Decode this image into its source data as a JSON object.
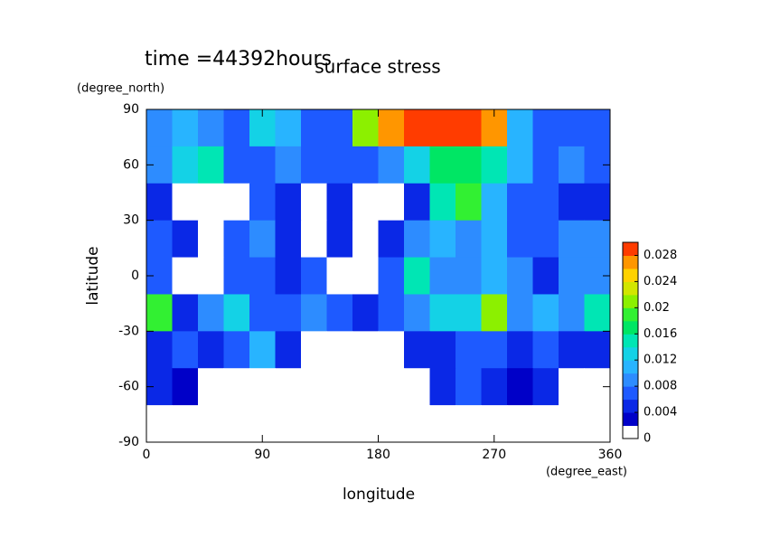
{
  "chart_data": {
    "type": "contour",
    "title": "surface stress",
    "subtitle": "time =44392hours",
    "x_label": "longitude",
    "x_unit": "(degree_east)",
    "y_label": "latitude",
    "y_unit": "(degree_north)",
    "x": [
      10,
      30,
      50,
      70,
      90,
      110,
      130,
      150,
      170,
      190,
      210,
      230,
      250,
      270,
      290,
      310,
      330,
      350
    ],
    "y": [
      80,
      60,
      40,
      20,
      0,
      -20,
      -40,
      -60,
      -80
    ],
    "z": [
      [
        0.008,
        0.01,
        0.008,
        0.006,
        0.012,
        0.01,
        0.006,
        0.006,
        0.02,
        0.026,
        0.028,
        0.028,
        0.028,
        0.026,
        0.01,
        0.006,
        0.006,
        0.006
      ],
      [
        0.008,
        0.012,
        0.014,
        0.006,
        0.006,
        0.008,
        0.006,
        0.006,
        0.006,
        0.008,
        0.012,
        0.016,
        0.016,
        0.014,
        0.01,
        0.006,
        0.008,
        0.006
      ],
      [
        0.004,
        0,
        0,
        0,
        0.006,
        0.004,
        0,
        0.004,
        0,
        0,
        0.004,
        0.014,
        0.018,
        0.01,
        0.006,
        0.006,
        0.004,
        0.004
      ],
      [
        0.006,
        0.004,
        0,
        0.006,
        0.008,
        0.004,
        0,
        0.004,
        0,
        0.004,
        0.008,
        0.01,
        0.008,
        0.01,
        0.006,
        0.006,
        0.008,
        0.008
      ],
      [
        0.006,
        0,
        0,
        0.006,
        0.006,
        0.004,
        0.006,
        0,
        0,
        0.006,
        0.014,
        0.008,
        0.008,
        0.01,
        0.008,
        0.004,
        0.008,
        0.008
      ],
      [
        0.018,
        0.004,
        0.008,
        0.012,
        0.006,
        0.006,
        0.008,
        0.006,
        0.004,
        0.006,
        0.008,
        0.012,
        0.012,
        0.02,
        0.008,
        0.01,
        0.008,
        0.014
      ],
      [
        0.004,
        0.006,
        0.004,
        0.006,
        0.01,
        0.004,
        0,
        0,
        0,
        0,
        0.004,
        0.004,
        0.006,
        0.006,
        0.004,
        0.006,
        0.004,
        0.004
      ],
      [
        0.004,
        0.002,
        0,
        0,
        0,
        0,
        0,
        0,
        0,
        0,
        0,
        0.004,
        0.006,
        0.004,
        0.002,
        0.004,
        0,
        0
      ],
      [
        0,
        0,
        0,
        0,
        0,
        0,
        0,
        0,
        0,
        0,
        0,
        0,
        0,
        0,
        0,
        0,
        0,
        0
      ]
    ],
    "xlim": [
      0,
      360
    ],
    "xticks": [
      0,
      90,
      180,
      270,
      360
    ],
    "ylim": [
      -90,
      90
    ],
    "yticks": [
      -90,
      -60,
      -30,
      0,
      30,
      60,
      90
    ],
    "clim": [
      0,
      0.03
    ],
    "cticks": [
      0,
      0.004,
      0.008,
      0.012,
      0.016,
      0.02,
      0.024,
      0.028
    ],
    "colors": [
      "#ffffff",
      "#0000c8",
      "#0a28e6",
      "#1e5aff",
      "#2d8cff",
      "#28b4ff",
      "#14d2e6",
      "#00e6b4",
      "#00e664",
      "#32f032",
      "#8cf000",
      "#d2e600",
      "#ffd200",
      "#ff9600",
      "#ff3c00"
    ]
  }
}
